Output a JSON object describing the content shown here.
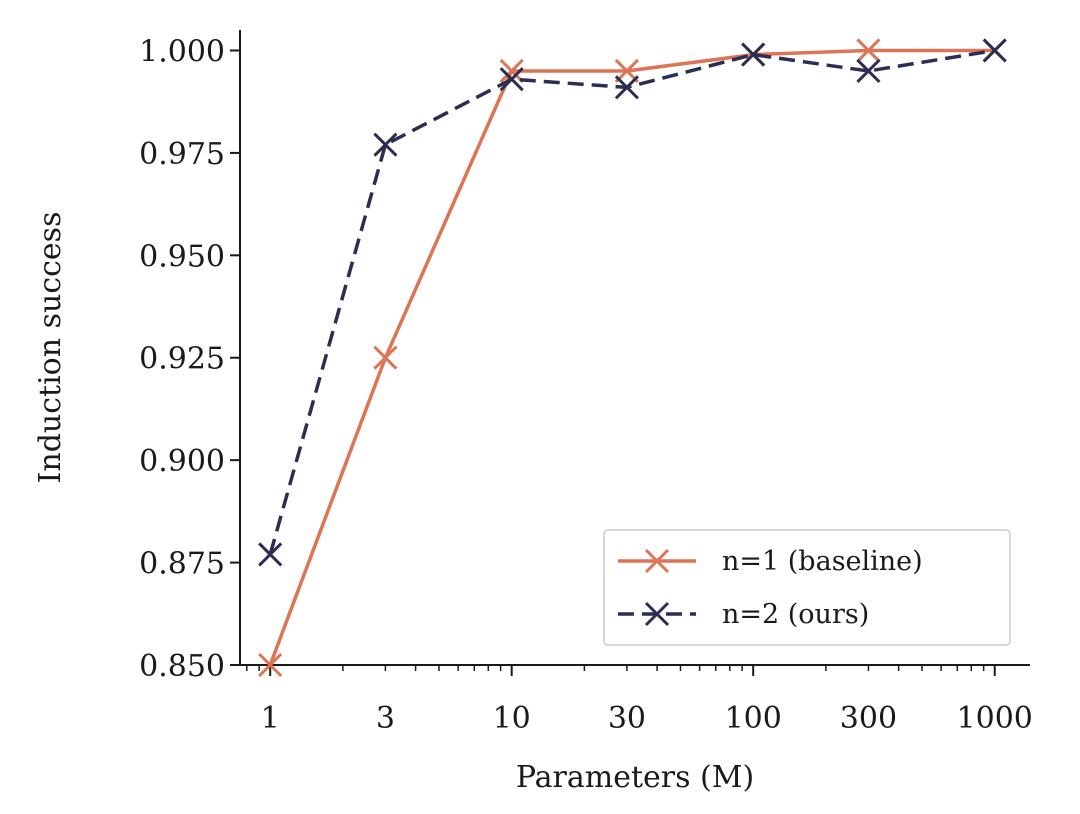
{
  "chart_data": {
    "type": "line",
    "xlabel": "Parameters (M)",
    "ylabel": "Induction success",
    "x_scale": "log",
    "xlim": [
      0.75,
      1400
    ],
    "ylim": [
      0.85,
      1.005
    ],
    "x_ticks": [
      1,
      3,
      10,
      30,
      100,
      300,
      1000
    ],
    "x_tick_labels": [
      "1",
      "3",
      "10",
      "30",
      "100",
      "300",
      "1000"
    ],
    "y_ticks": [
      0.85,
      0.875,
      0.9,
      0.925,
      0.95,
      0.975,
      1.0
    ],
    "y_tick_labels": [
      "0.850",
      "0.875",
      "0.900",
      "0.925",
      "0.950",
      "0.975",
      "1.000"
    ],
    "grid": false,
    "legend_position": "lower-right",
    "series": [
      {
        "name": "n=1 (baseline)",
        "color": "#dd7455",
        "line_style": "solid",
        "marker": "x",
        "x": [
          1,
          3,
          10,
          30,
          100,
          300,
          1000
        ],
        "y": [
          0.85,
          0.925,
          0.995,
          0.995,
          0.999,
          1.0,
          1.0
        ]
      },
      {
        "name": "n=2 (ours)",
        "color": "#2b2d52",
        "line_style": "dashed",
        "marker": "x",
        "x": [
          1,
          3,
          10,
          30,
          100,
          300,
          1000
        ],
        "y": [
          0.877,
          0.977,
          0.993,
          0.991,
          0.999,
          0.995,
          1.0
        ]
      }
    ]
  }
}
